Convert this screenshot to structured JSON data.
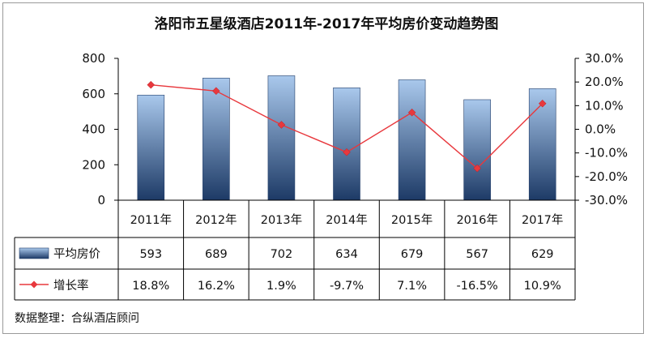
{
  "chart_data": {
    "type": "bar",
    "title": "洛阳市五星级酒店2011年-2017年平均房价变动趋势图",
    "categories": [
      "2011年",
      "2012年",
      "2013年",
      "2014年",
      "2015年",
      "2016年",
      "2017年"
    ],
    "series": [
      {
        "name": "平均房价",
        "type": "bar",
        "axis": "left",
        "values": [
          593,
          689,
          702,
          634,
          679,
          567,
          629
        ],
        "labels": [
          "593",
          "689",
          "702",
          "634",
          "679",
          "567",
          "629"
        ]
      },
      {
        "name": "增长率",
        "type": "line",
        "axis": "right",
        "values": [
          18.8,
          16.2,
          1.9,
          -9.7,
          7.1,
          -16.5,
          10.9
        ],
        "labels": [
          "18.8%",
          "16.2%",
          "1.9%",
          "-9.7%",
          "7.1%",
          "-16.5%",
          "10.9%"
        ]
      }
    ],
    "y_left": {
      "ylim": [
        0,
        800
      ],
      "ticks": [
        "800",
        "600",
        "400",
        "200",
        "0"
      ],
      "tick_values": [
        800,
        600,
        400,
        200,
        0
      ]
    },
    "y_right": {
      "ylim": [
        -30,
        30
      ],
      "ticks": [
        "30.0%",
        "20.0%",
        "10.0%",
        "0.0%",
        "-10.0%",
        "-20.0%",
        "-30.0%"
      ],
      "tick_values": [
        30,
        20,
        10,
        0,
        -10,
        -20,
        -30
      ]
    },
    "grid": false,
    "legend": "data-table",
    "source_note": "数据整理：合纵酒店顾问",
    "colors": {
      "bar_top": "#a9c8ec",
      "bar_bottom": "#1d3a66",
      "line": "#e8383d",
      "marker": "#e8383d",
      "axis": "#000000"
    }
  }
}
